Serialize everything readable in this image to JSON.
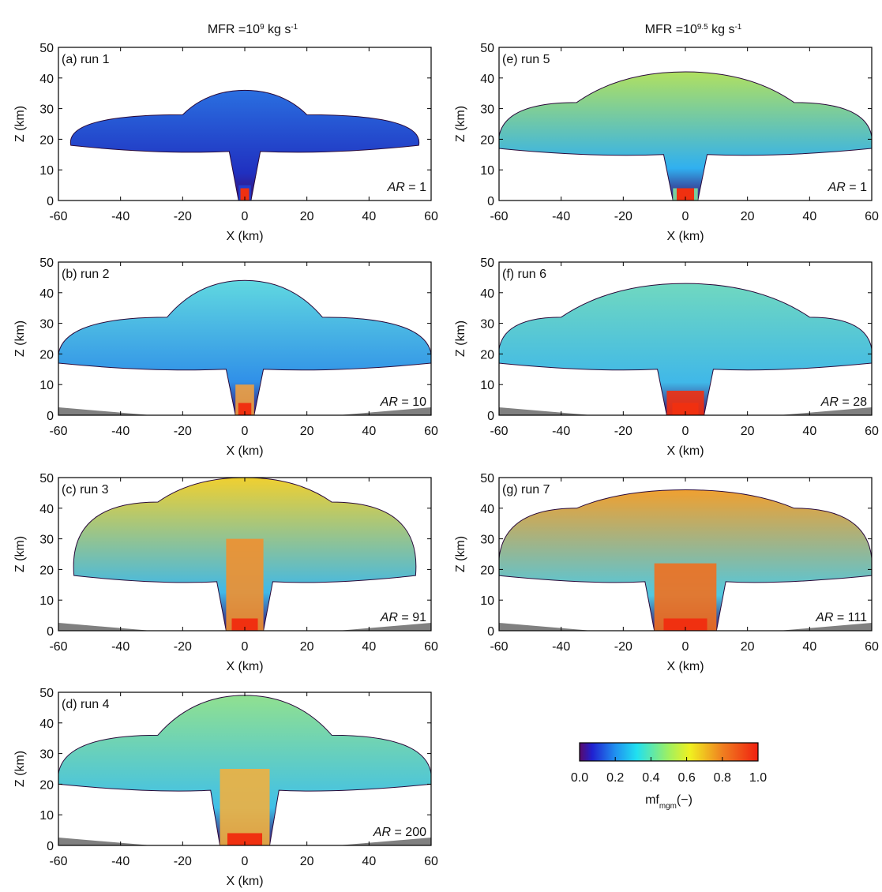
{
  "chart_data": [
    {
      "type": "plume",
      "column_title": [
        "MFR =10",
        "9",
        " kg s",
        "-1"
      ],
      "label": "(a) run 1",
      "annotation": [
        "AR",
        " = 1"
      ],
      "xlabel": "X (km)",
      "ylabel": "Z (km)",
      "xlim": [
        -60,
        60
      ],
      "ylim": [
        0,
        50
      ],
      "xticks": [
        -60,
        -40,
        -20,
        0,
        20,
        40,
        60
      ],
      "yticks": [
        0,
        10,
        20,
        30,
        40,
        50
      ]
    },
    {
      "type": "plume",
      "label": "(b) run 2",
      "annotation": [
        "AR",
        " = 10"
      ],
      "xlabel": "X (km)",
      "ylabel": "Z (km)",
      "xlim": [
        -60,
        60
      ],
      "ylim": [
        0,
        50
      ],
      "xticks": [
        -60,
        -40,
        -20,
        0,
        20,
        40,
        60
      ],
      "yticks": [
        0,
        10,
        20,
        30,
        40,
        50
      ]
    },
    {
      "type": "plume",
      "label": "(c) run 3",
      "annotation": [
        "AR",
        " = 91"
      ],
      "xlabel": "X (km)",
      "ylabel": "Z (km)",
      "xlim": [
        -60,
        60
      ],
      "ylim": [
        0,
        50
      ],
      "xticks": [
        -60,
        -40,
        -20,
        0,
        20,
        40,
        60
      ],
      "yticks": [
        0,
        10,
        20,
        30,
        40,
        50
      ]
    },
    {
      "type": "plume",
      "label": "(d) run 4",
      "annotation": [
        "AR",
        " = 200"
      ],
      "xlabel": "X (km)",
      "ylabel": "Z (km)",
      "xlim": [
        -60,
        60
      ],
      "ylim": [
        0,
        50
      ],
      "xticks": [
        -60,
        -40,
        -20,
        0,
        20,
        40,
        60
      ],
      "yticks": [
        0,
        10,
        20,
        30,
        40,
        50
      ]
    },
    {
      "type": "plume",
      "column_title": [
        "MFR =10",
        "9.5",
        " kg s",
        "-1"
      ],
      "label": "(e) run 5",
      "annotation": [
        "AR",
        " = 1"
      ],
      "xlabel": "X (km)",
      "ylabel": "Z (km)",
      "xlim": [
        -60,
        60
      ],
      "ylim": [
        0,
        50
      ],
      "xticks": [
        -60,
        -40,
        -20,
        0,
        20,
        40,
        60
      ],
      "yticks": [
        0,
        10,
        20,
        30,
        40,
        50
      ]
    },
    {
      "type": "plume",
      "label": "(f) run 6",
      "annotation": [
        "AR",
        " = 28"
      ],
      "xlabel": "X (km)",
      "ylabel": "Z (km)",
      "xlim": [
        -60,
        60
      ],
      "ylim": [
        0,
        50
      ],
      "xticks": [
        -60,
        -40,
        -20,
        0,
        20,
        40,
        60
      ],
      "yticks": [
        0,
        10,
        20,
        30,
        40,
        50
      ]
    },
    {
      "type": "plume",
      "label": "(g) run 7",
      "annotation": [
        "AR",
        " = 111"
      ],
      "xlabel": "X (km)",
      "ylabel": "Z (km)",
      "xlim": [
        -60,
        60
      ],
      "ylim": [
        0,
        50
      ],
      "xticks": [
        -60,
        -40,
        -20,
        0,
        20,
        40,
        60
      ],
      "yticks": [
        0,
        10,
        20,
        30,
        40,
        50
      ]
    },
    {
      "type": "colorbar",
      "label_parts": [
        "mf",
        "mgm",
        "(−)"
      ],
      "xlim": [
        0,
        1
      ],
      "xticks": [
        {
          "value": 0,
          "label": "0.0"
        },
        {
          "value": 0.2,
          "label": "0.2"
        },
        {
          "value": 0.4,
          "label": "0.4"
        },
        {
          "value": 0.6,
          "label": "0.6"
        },
        {
          "value": 0.8,
          "label": "0.8"
        },
        {
          "value": 1,
          "label": "1.0"
        }
      ]
    }
  ]
}
